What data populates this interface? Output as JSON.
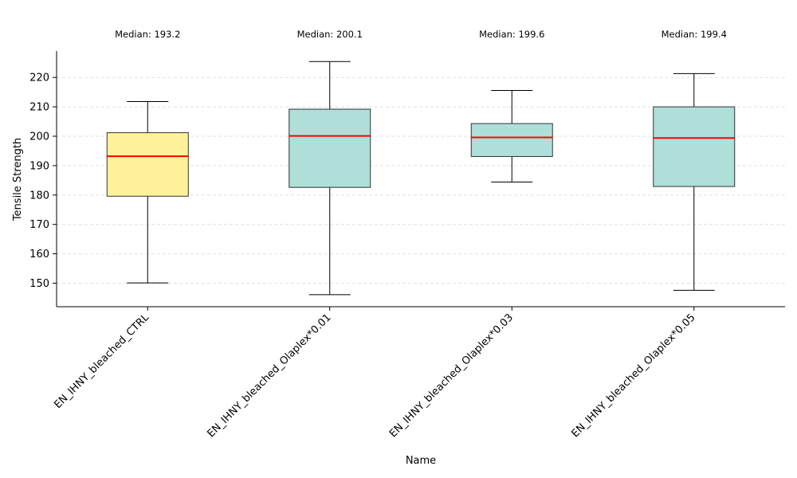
{
  "chart_data": {
    "type": "boxplot",
    "xlabel": "Name",
    "ylabel": "Tensile Strength",
    "ylim": [
      142,
      229
    ],
    "yticks": [
      150,
      160,
      170,
      180,
      190,
      200,
      210,
      220
    ],
    "grid": "horizontal dashed",
    "categories": [
      "EN_IHNY_bleached_CTRL",
      "EN_IHNY_bleached_Olaplex*0.01",
      "EN_IHNY_bleached_Olaplex*0.03",
      "EN_IHNY_bleached_Olaplex*0.05"
    ],
    "boxes": [
      {
        "whisker_low": 150.1,
        "q1": 179.6,
        "median": 193.2,
        "q3": 201.2,
        "whisker_high": 211.8,
        "color": "#fff29a",
        "median_label": "Median: 193.2"
      },
      {
        "whisker_low": 146.1,
        "q1": 182.6,
        "median": 200.1,
        "q3": 209.2,
        "whisker_high": 225.4,
        "color": "#aedfd9",
        "median_label": "Median: 200.1"
      },
      {
        "whisker_low": 184.4,
        "q1": 193.1,
        "median": 199.6,
        "q3": 204.3,
        "whisker_high": 215.6,
        "color": "#aedfd9",
        "median_label": "Median: 199.6"
      },
      {
        "whisker_low": 147.6,
        "q1": 182.9,
        "median": 199.4,
        "q3": 210.0,
        "whisker_high": 221.3,
        "color": "#aedfd9",
        "median_label": "Median: 199.4"
      }
    ],
    "colors": {
      "median_line": "#ff0000",
      "box_edge": "#333333",
      "grid": "#e0e0e0",
      "axis": "#000000"
    }
  }
}
